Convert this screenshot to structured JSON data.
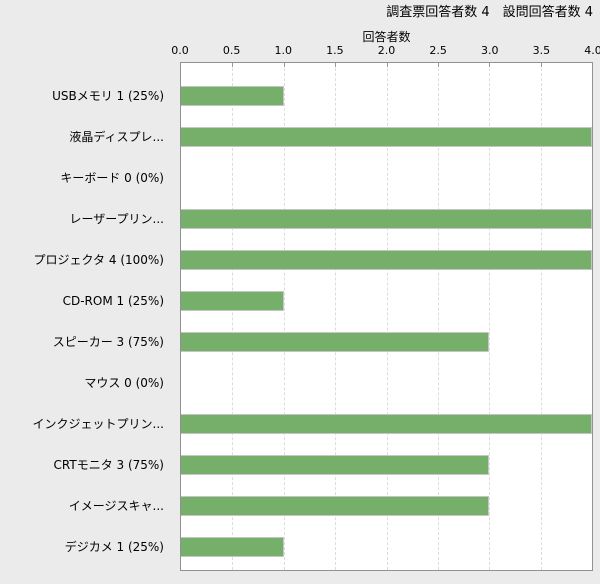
{
  "header": {
    "title": "調査票回答者数 4　設問回答者数 4"
  },
  "chart_data": {
    "type": "bar",
    "orientation": "horizontal",
    "title": "",
    "xlabel": "回答者数",
    "ylabel": "",
    "xlim": [
      0.0,
      4.0
    ],
    "x_tick_labels": [
      "0.0",
      "0.5",
      "1.0",
      "1.5",
      "2.0",
      "2.5",
      "3.0",
      "3.5",
      "4.0"
    ],
    "grid": "vertical dashed lines every 0.5",
    "legend": "none",
    "categories": [
      "USBメモリ 1 (25%)",
      "液晶ディスプレ...",
      "キーボード 0 (0%)",
      "レーザープリン...",
      "プロジェクタ 4 (100%)",
      "CD-ROM 1 (25%)",
      "スピーカー 3 (75%)",
      "マウス 0 (0%)",
      "インクジェットプリン...",
      "CRTモニタ 3 (75%)",
      "イメージスキャ...",
      "デジカメ 1 (25%)"
    ],
    "values": [
      1,
      4,
      0,
      4,
      4,
      1,
      3,
      0,
      4,
      3,
      3,
      1
    ],
    "colors": {
      "bar_fill": "#76af6a",
      "bar_border": "#c6c6c6",
      "plot_background": "#ffffff",
      "page_background": "#ebebeb",
      "gridline": "#dcdcdc",
      "plot_border": "#919191",
      "text": "#000000"
    }
  }
}
